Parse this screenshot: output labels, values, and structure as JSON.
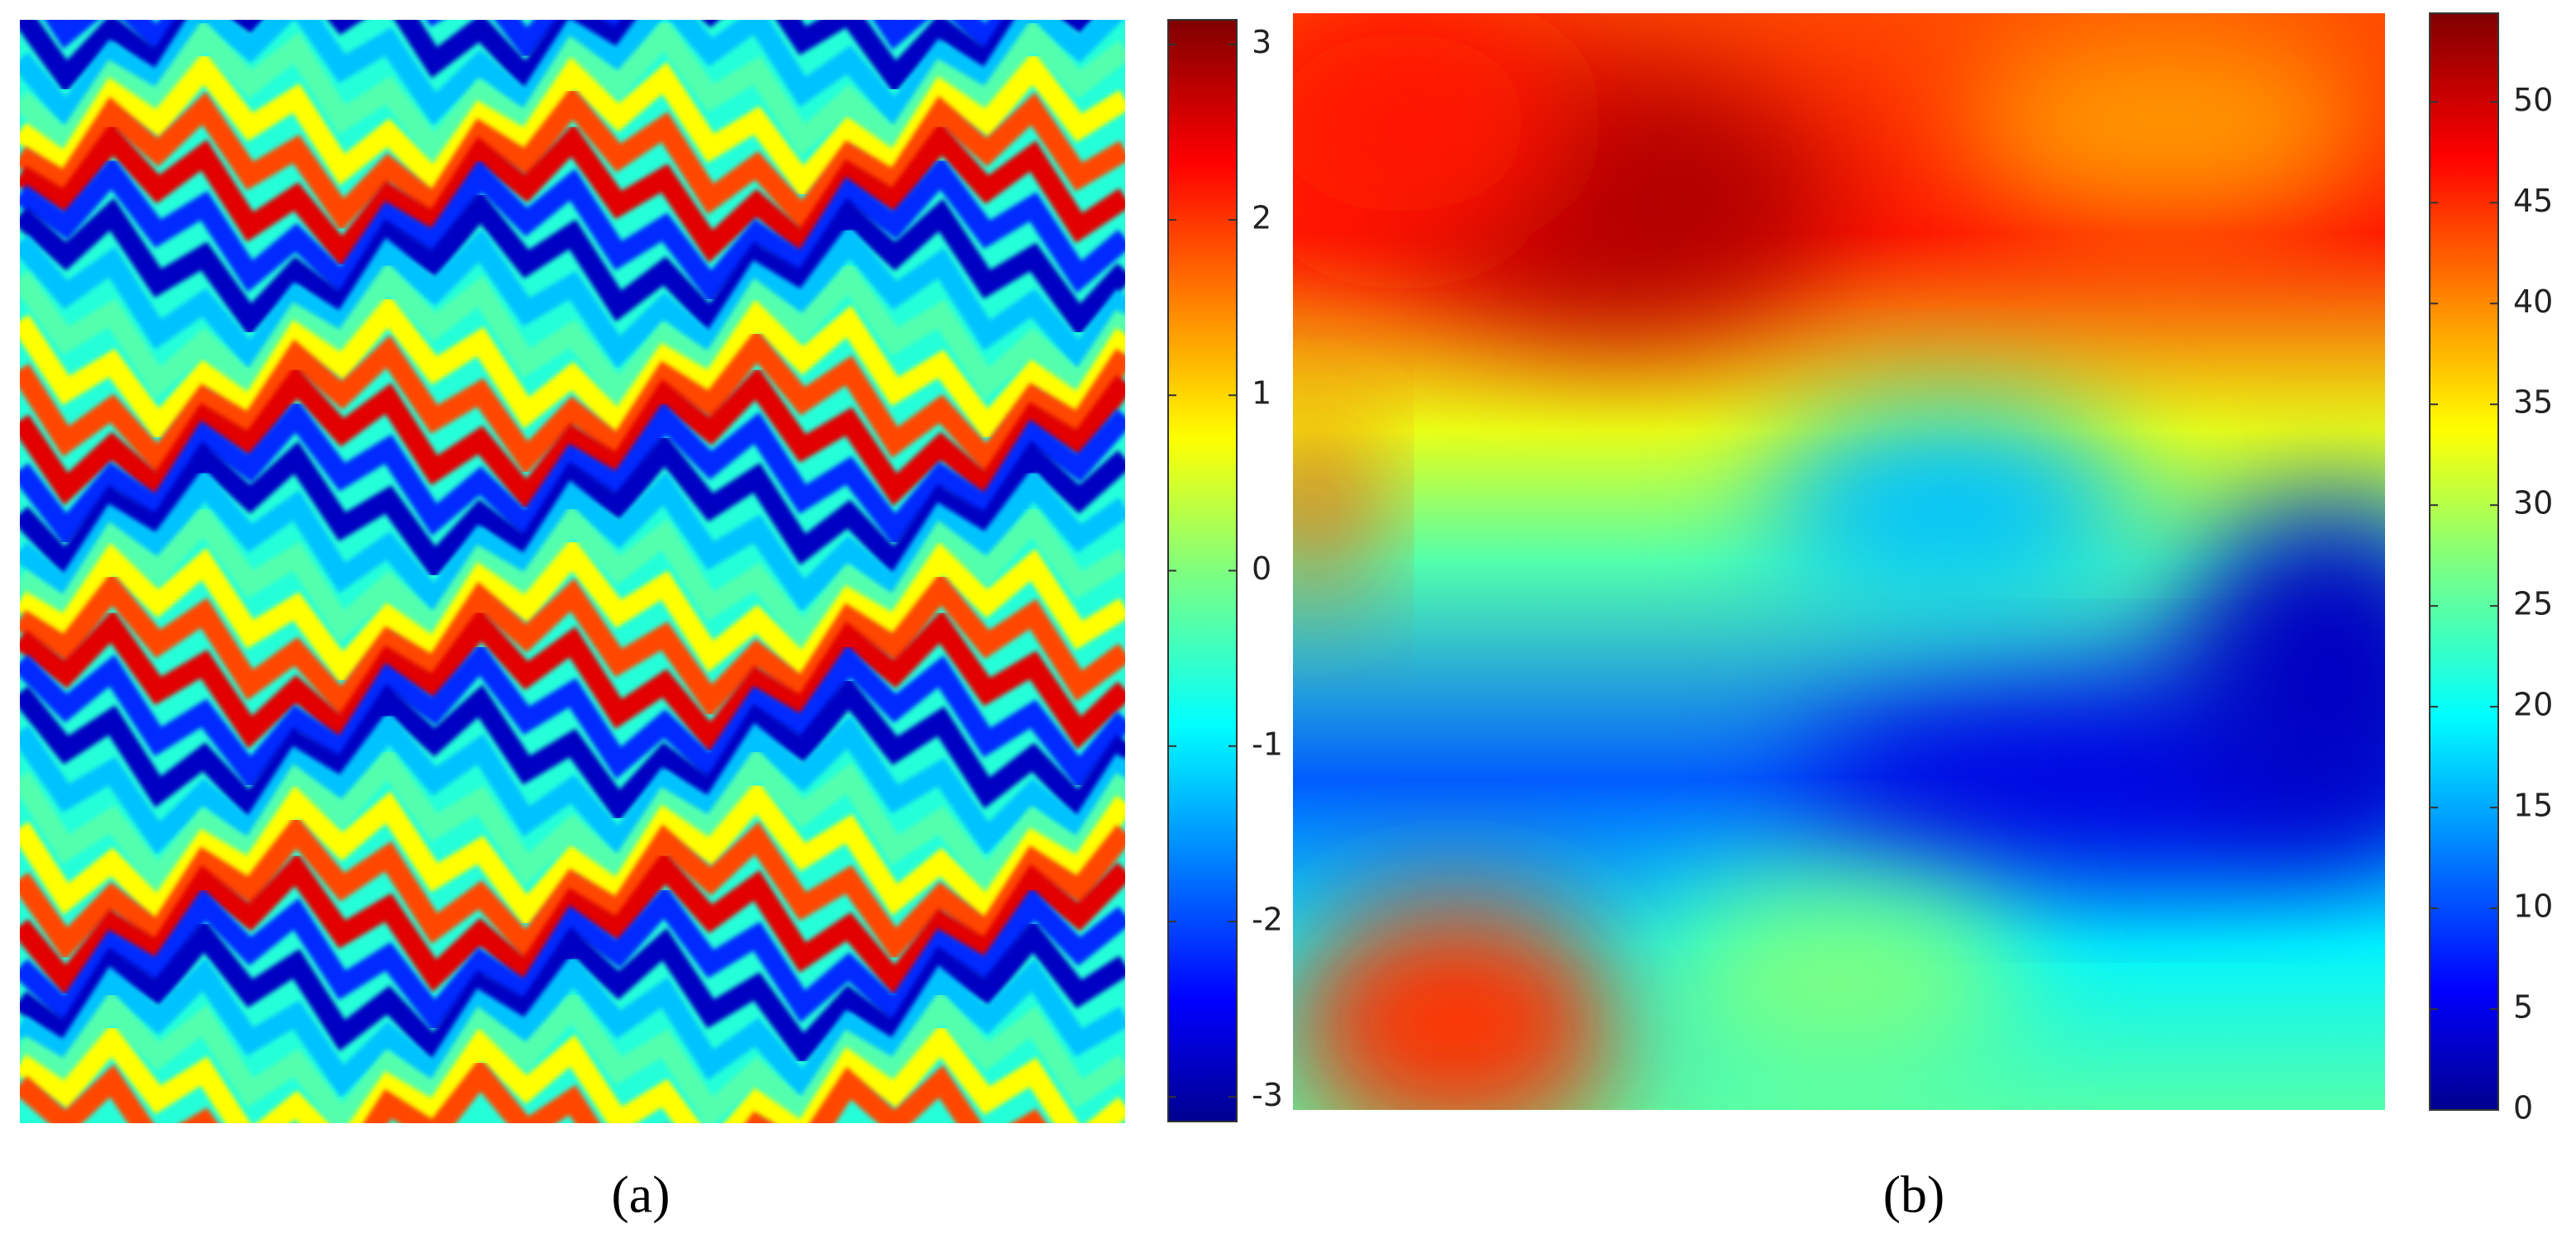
{
  "chart_data": [
    {
      "type": "heatmap",
      "caption": "(a)",
      "colormap": "jet",
      "clim": [
        -3.14,
        3.14
      ],
      "cticks": [
        -3,
        -2,
        -1,
        0,
        1,
        2,
        3
      ]
    },
    {
      "type": "heatmap",
      "caption": "(b)",
      "colormap": "jet",
      "clim": [
        0,
        54.4
      ],
      "cticks": [
        0,
        5,
        10,
        15,
        20,
        25,
        30,
        35,
        40,
        45,
        50
      ]
    }
  ]
}
